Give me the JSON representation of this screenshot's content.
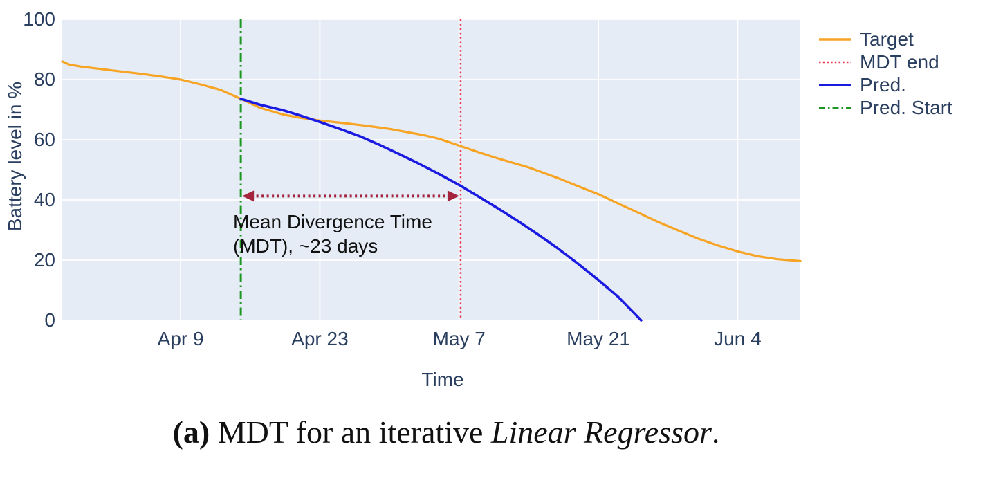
{
  "figure": {
    "background": "#ffffff",
    "plot_bg": "#e5ecf6",
    "grid_color": "#ffffff",
    "axis_text_color": "#2a3f5f",
    "annotation_text_color": "#111111"
  },
  "chart_data": {
    "type": "line",
    "xlabel": "Time",
    "ylabel": "Battery level in %",
    "x_unit": "days relative to Apr 9",
    "xlim": [
      -11.9,
      62.3
    ],
    "ylim": [
      0,
      100
    ],
    "grid": true,
    "x_ticks": [
      {
        "day": 0,
        "label": "Apr 9"
      },
      {
        "day": 14,
        "label": "Apr 23"
      },
      {
        "day": 28,
        "label": "May 7"
      },
      {
        "day": 42,
        "label": "May 21"
      },
      {
        "day": 56,
        "label": "Jun 4"
      }
    ],
    "y_ticks": [
      0,
      20,
      40,
      60,
      80,
      100
    ],
    "series": [
      {
        "name": "Target",
        "color": "#f7a425",
        "dash": "solid",
        "width": 3.2,
        "points": [
          [
            -11.9,
            86.0
          ],
          [
            -11.2,
            85.0
          ],
          [
            -10,
            84.3
          ],
          [
            -8,
            83.5
          ],
          [
            -6,
            82.7
          ],
          [
            -4,
            81.9
          ],
          [
            -2,
            81.0
          ],
          [
            0,
            80.0
          ],
          [
            2,
            78.4
          ],
          [
            4,
            76.6
          ],
          [
            6.05,
            73.6
          ],
          [
            8,
            70.6
          ],
          [
            10.3,
            68.4
          ],
          [
            12,
            67.3
          ],
          [
            14,
            66.4
          ],
          [
            17,
            65.3
          ],
          [
            19,
            64.5
          ],
          [
            21,
            63.6
          ],
          [
            24.5,
            61.5
          ],
          [
            26,
            60.3
          ],
          [
            28.15,
            57.9
          ],
          [
            30,
            55.8
          ],
          [
            32,
            53.7
          ],
          [
            35,
            50.8
          ],
          [
            38,
            47.2
          ],
          [
            40,
            44.5
          ],
          [
            42,
            41.9
          ],
          [
            44,
            38.8
          ],
          [
            46,
            35.8
          ],
          [
            48,
            32.7
          ],
          [
            50,
            29.9
          ],
          [
            52,
            27.2
          ],
          [
            54,
            24.9
          ],
          [
            56,
            22.9
          ],
          [
            58,
            21.3
          ],
          [
            60,
            20.3
          ],
          [
            62.3,
            19.7
          ]
        ]
      },
      {
        "name": "Pred.",
        "color": "#1a1ae0",
        "dash": "solid",
        "width": 3.6,
        "points": [
          [
            6.05,
            73.6
          ],
          [
            8,
            71.6
          ],
          [
            10.3,
            69.8
          ],
          [
            12,
            68.1
          ],
          [
            14,
            65.9
          ],
          [
            16,
            63.6
          ],
          [
            18,
            61.2
          ],
          [
            20,
            58.3
          ],
          [
            22,
            55.2
          ],
          [
            24,
            52.0
          ],
          [
            26,
            48.6
          ],
          [
            28.15,
            44.7
          ],
          [
            30,
            41.0
          ],
          [
            32,
            37.0
          ],
          [
            34,
            32.8
          ],
          [
            36,
            28.4
          ],
          [
            38,
            23.7
          ],
          [
            40,
            18.7
          ],
          [
            42,
            13.4
          ],
          [
            44,
            7.8
          ],
          [
            46.3,
            0.0
          ]
        ]
      }
    ],
    "vlines": [
      {
        "name": "Pred. Start",
        "day": 6.05,
        "color": "#1d9722",
        "dash": "dashdot",
        "width": 3
      },
      {
        "name": "MDT end",
        "day": 28.15,
        "color": "#e8394f",
        "dash": "dot",
        "width": 2.5
      }
    ],
    "legend": {
      "position": "top-right-outside",
      "items": [
        {
          "label": "Target",
          "color": "#f7a425",
          "dash": "solid"
        },
        {
          "label": "MDT end",
          "color": "#e8394f",
          "dash": "dot"
        },
        {
          "label": "Pred.",
          "color": "#1a1ae0",
          "dash": "solid"
        },
        {
          "label": "Pred. Start",
          "color": "#1d9722",
          "dash": "dashdot"
        }
      ]
    },
    "annotation": {
      "text_line1": "Mean Divergence Time",
      "text_line2": "(MDT), ~23 days",
      "arrow": {
        "from_day": 6.05,
        "to_day": 28.15,
        "y_value": 41.3,
        "color": "#a5243d"
      }
    }
  },
  "caption": {
    "label": "(a)",
    "text": " MDT for an iterative ",
    "italic": "Linear Regressor",
    "period": "."
  }
}
